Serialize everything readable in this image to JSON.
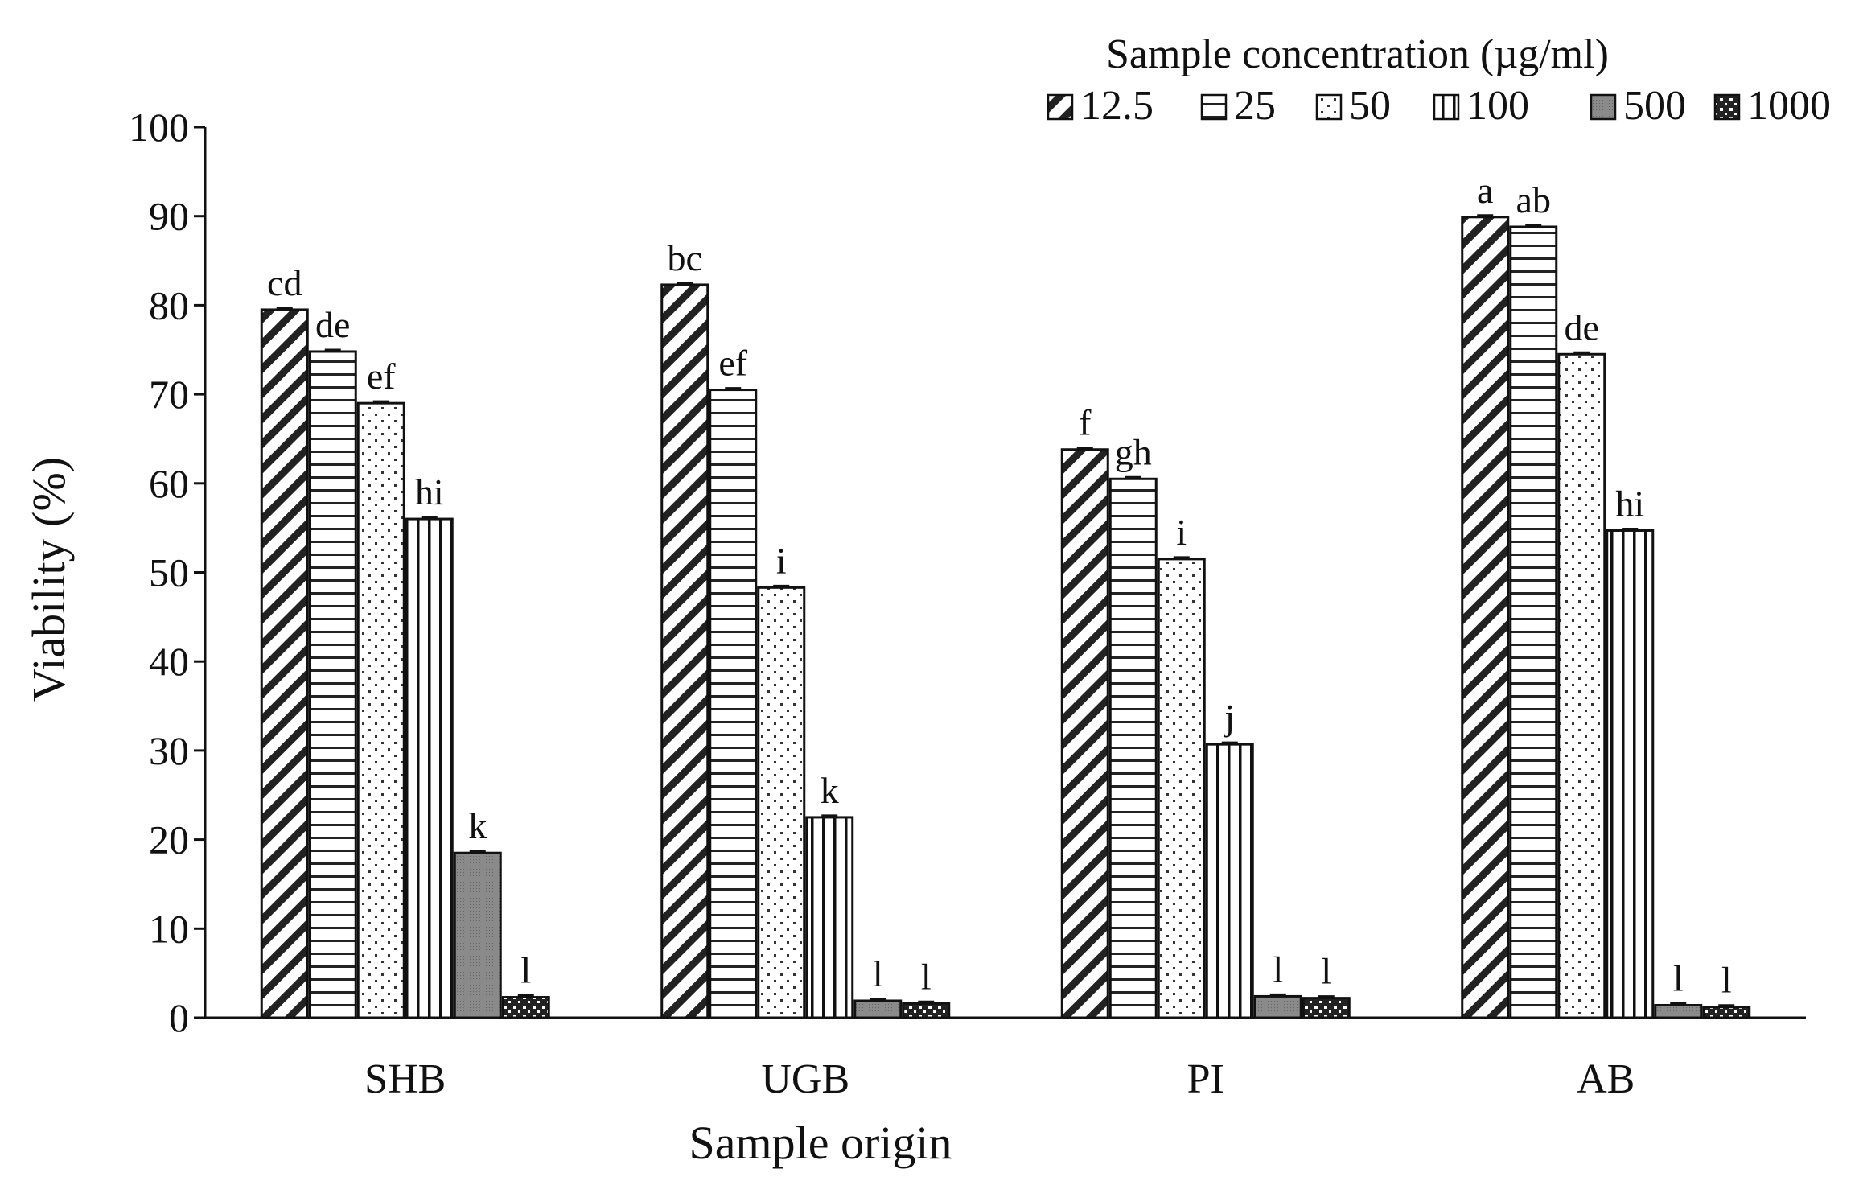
{
  "chart_data": {
    "type": "bar",
    "title": "",
    "xlabel": "Sample origin",
    "ylabel": "Viability (%)",
    "ylim": [
      0,
      100
    ],
    "yticks": [
      0,
      10,
      20,
      30,
      40,
      50,
      60,
      70,
      80,
      90,
      100
    ],
    "grid": false,
    "legend_title": "Sample concentration (µg/ml)",
    "legend_position": "top-right",
    "categories": [
      "SHB",
      "UGB",
      "PI",
      "AB"
    ],
    "series": [
      {
        "name": "12.5",
        "pattern": "diagonal",
        "values": [
          79.5,
          82.3,
          63.8,
          89.9
        ],
        "letters": [
          "cd",
          "bc",
          "f",
          "a"
        ]
      },
      {
        "name": "25",
        "pattern": "horizontal",
        "values": [
          74.8,
          70.5,
          60.5,
          88.8
        ],
        "letters": [
          "de",
          "ef",
          "gh",
          "ab"
        ]
      },
      {
        "name": "50",
        "pattern": "dots",
        "values": [
          69.0,
          48.3,
          51.5,
          74.5
        ],
        "letters": [
          "ef",
          "i",
          "i",
          "de"
        ]
      },
      {
        "name": "100",
        "pattern": "vertical",
        "values": [
          56.0,
          22.5,
          30.7,
          54.7
        ],
        "letters": [
          "hi",
          "k",
          "j",
          "hi"
        ]
      },
      {
        "name": "500",
        "pattern": "gray",
        "values": [
          18.5,
          1.9,
          2.4,
          1.4
        ],
        "letters": [
          "k",
          "l",
          "l",
          "l"
        ]
      },
      {
        "name": "1000",
        "pattern": "checker",
        "values": [
          2.3,
          1.6,
          2.2,
          1.2
        ],
        "letters": [
          "l",
          "l",
          "l",
          "l"
        ]
      }
    ]
  },
  "colors": {
    "ink": "#111111",
    "background": "#ffffff",
    "gray_fill": "#8a8a8a"
  }
}
